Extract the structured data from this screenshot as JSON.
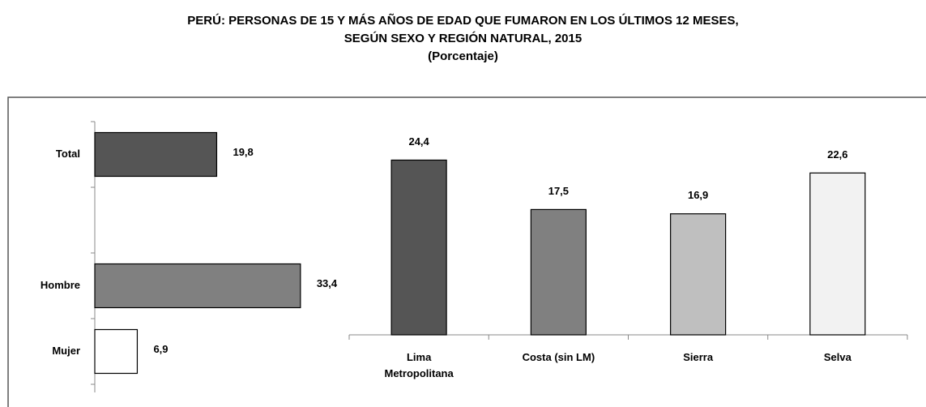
{
  "title": "PERÚ: PERSONAS DE 15 Y MÁS AÑOS DE EDAD QUE FUMARON EN LOS ÚLTIMOS 12 MESES,",
  "subtitle": "SEGÚN SEXO Y REGIÓN NATURAL,  2015",
  "unit": "(Porcentaje)",
  "chart_data": [
    {
      "type": "hbar",
      "categories": [
        "Total",
        null,
        "Hombre",
        "Mujer"
      ],
      "values": [
        19.8,
        null,
        33.4,
        6.9
      ],
      "value_labels": [
        "19,8",
        null,
        "33,4",
        "6,9"
      ],
      "colors": [
        "#555555",
        null,
        "#808080",
        "#ffffff"
      ],
      "xlim": [
        0,
        40
      ]
    },
    {
      "type": "bar",
      "categories": [
        "Lima Metropolitana",
        "Costa (sin LM)",
        "Sierra",
        "Selva"
      ],
      "values": [
        24.4,
        17.5,
        16.9,
        22.6
      ],
      "value_labels": [
        "24,4",
        "17,5",
        "16,9",
        "22,6"
      ],
      "colors": [
        "#555555",
        "#808080",
        "#bfbfbf",
        "#f2f2f2"
      ],
      "ylim": [
        0,
        30
      ]
    }
  ]
}
